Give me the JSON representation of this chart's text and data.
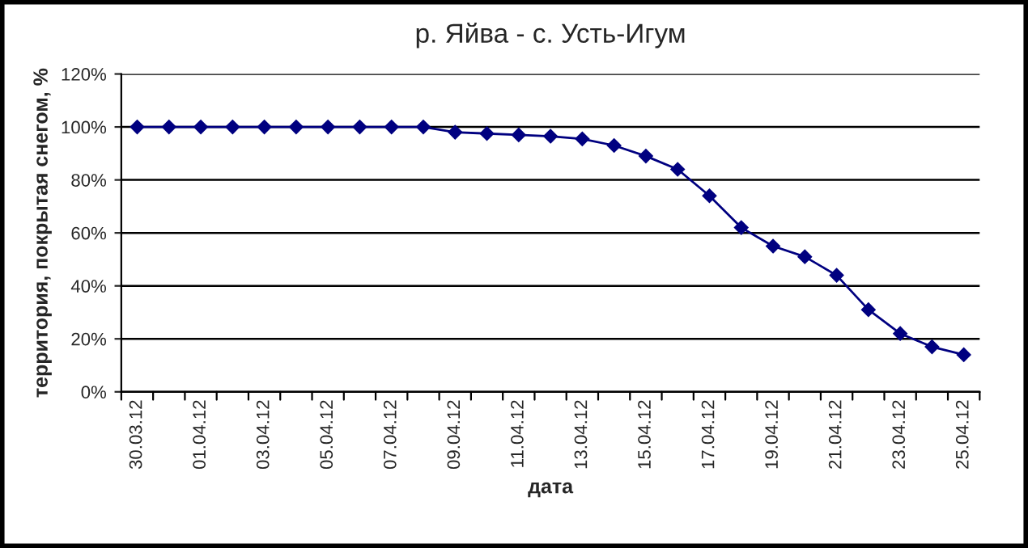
{
  "chart_data": {
    "type": "line",
    "title": "р. Яйва - с. Усть-Игум",
    "xlabel": "дата",
    "ylabel": "территория, покрытая снегом, %",
    "categories": [
      "30.03.12",
      null,
      "01.04.12",
      null,
      "03.04.12",
      null,
      "05.04.12",
      null,
      "07.04.12",
      null,
      "09.04.12",
      null,
      "11.04.12",
      null,
      "13.04.12",
      null,
      "15.04.12",
      null,
      "17.04.12",
      null,
      "19.04.12",
      null,
      "21.04.12",
      null,
      "23.04.12",
      null,
      "25.04.12"
    ],
    "series": [
      {
        "color": "#000080",
        "values": [
          100,
          100,
          100,
          100,
          100,
          100,
          100,
          100,
          100,
          100,
          98,
          97.5,
          97,
          96.5,
          95.5,
          93,
          89,
          84,
          74,
          62,
          55,
          51,
          44,
          31,
          22,
          17,
          14
        ]
      }
    ],
    "ylim": [
      0,
      120
    ],
    "yticks": [
      {
        "value": 0,
        "label": "0%"
      },
      {
        "value": 20,
        "label": "20%"
      },
      {
        "value": 40,
        "label": "40%"
      },
      {
        "value": 60,
        "label": "60%"
      },
      {
        "value": 80,
        "label": "80%"
      },
      {
        "value": 100,
        "label": "100%"
      },
      {
        "value": 120,
        "label": "120%"
      }
    ],
    "grid": "y",
    "marker": "diamond",
    "line_style": "solid"
  }
}
